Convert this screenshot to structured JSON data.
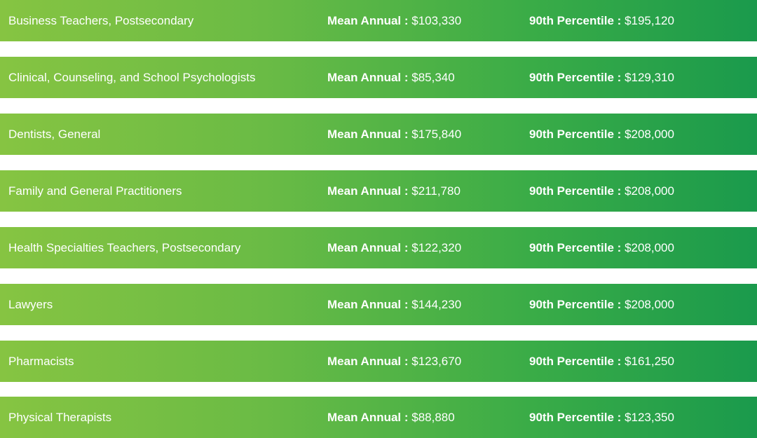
{
  "labels": {
    "mean": "Mean Annual",
    "p90": "90th Percentile",
    "separator": " : "
  },
  "rows": [
    {
      "occupation": "Business Teachers, Postsecondary",
      "mean": "$103,330",
      "p90": "$195,120"
    },
    {
      "occupation": "Clinical, Counseling, and School Psychologists",
      "mean": "$85,340",
      "p90": "$129,310"
    },
    {
      "occupation": "Dentists, General",
      "mean": "$175,840",
      "p90": "$208,000"
    },
    {
      "occupation": "Family and General Practitioners",
      "mean": "$211,780",
      "p90": "$208,000"
    },
    {
      "occupation": "Health Specialties Teachers, Postsecondary",
      "mean": "$122,320",
      "p90": "$208,000"
    },
    {
      "occupation": "Lawyers",
      "mean": "$144,230",
      "p90": "$208,000"
    },
    {
      "occupation": "Pharmacists",
      "mean": "$123,670",
      "p90": "$161,250"
    },
    {
      "occupation": "Physical Therapists",
      "mean": "$88,880",
      "p90": "$123,350"
    }
  ],
  "colors": {
    "row_gradient_start": "#86c442",
    "row_gradient_end": "#1a9a4c",
    "text": "#ffffff"
  }
}
